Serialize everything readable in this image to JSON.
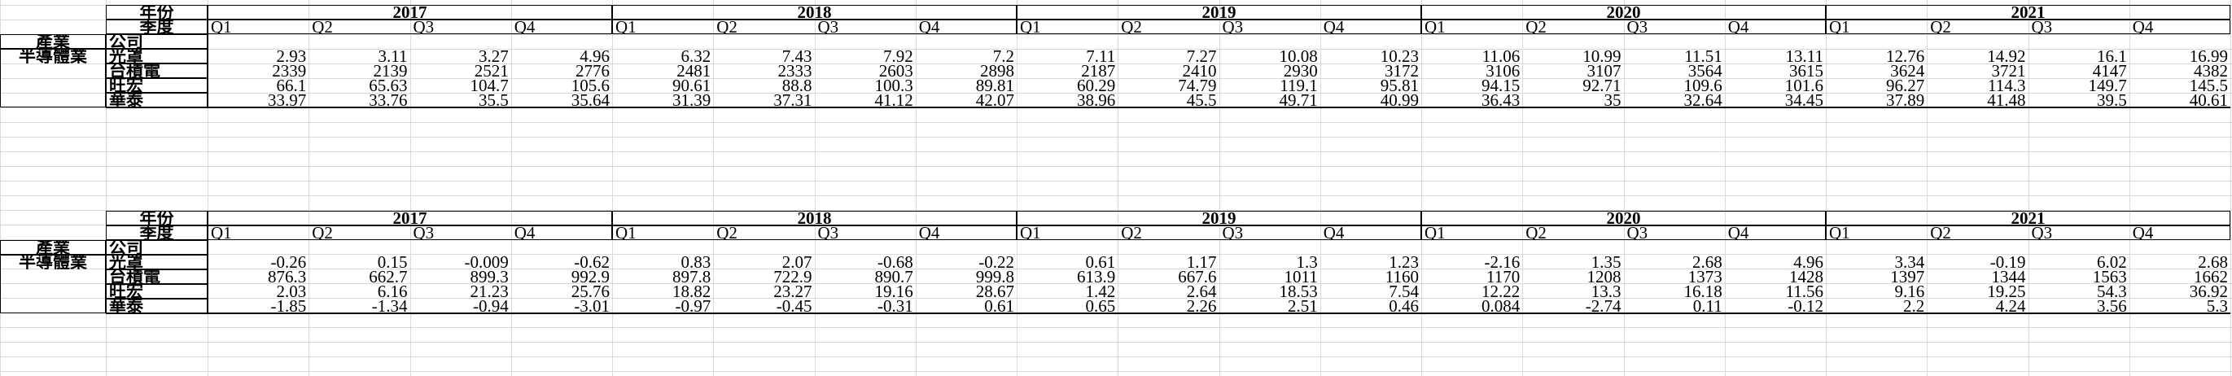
{
  "tables": [
    {
      "year_label": "年份",
      "quarter_label": "季度",
      "industry_label": "產業",
      "company_label": "公司",
      "industry_name": "半導體業",
      "years": [
        "2017",
        "2018",
        "2019",
        "2020",
        "2021"
      ],
      "quarters": [
        "Q1",
        "Q2",
        "Q3",
        "Q4"
      ],
      "companies": [
        {
          "name": "光罩",
          "values": [
            "2.93",
            "3.11",
            "3.27",
            "4.96",
            "6.32",
            "7.43",
            "7.92",
            "7.2",
            "7.11",
            "7.27",
            "10.08",
            "10.23",
            "11.06",
            "10.99",
            "11.51",
            "13.11",
            "12.76",
            "14.92",
            "16.1",
            "16.99"
          ]
        },
        {
          "name": "台積電",
          "values": [
            "2339",
            "2139",
            "2521",
            "2776",
            "2481",
            "2333",
            "2603",
            "2898",
            "2187",
            "2410",
            "2930",
            "3172",
            "3106",
            "3107",
            "3564",
            "3615",
            "3624",
            "3721",
            "4147",
            "4382"
          ]
        },
        {
          "name": "旺宏",
          "values": [
            "66.1",
            "65.63",
            "104.7",
            "105.6",
            "90.61",
            "88.8",
            "100.3",
            "89.81",
            "60.29",
            "74.79",
            "119.1",
            "95.81",
            "94.15",
            "92.71",
            "109.6",
            "101.6",
            "96.27",
            "114.3",
            "149.7",
            "145.5"
          ]
        },
        {
          "name": "華泰",
          "values": [
            "33.97",
            "33.76",
            "35.5",
            "35.64",
            "31.39",
            "37.31",
            "41.12",
            "42.07",
            "38.96",
            "45.5",
            "49.71",
            "40.99",
            "36.43",
            "35",
            "32.64",
            "34.45",
            "37.89",
            "41.48",
            "39.5",
            "40.61"
          ]
        }
      ]
    },
    {
      "year_label": "年份",
      "quarter_label": "季度",
      "industry_label": "產業",
      "company_label": "公司",
      "industry_name": "半導體業",
      "years": [
        "2017",
        "2018",
        "2019",
        "2020",
        "2021"
      ],
      "quarters": [
        "Q1",
        "Q2",
        "Q3",
        "Q4"
      ],
      "companies": [
        {
          "name": "光罩",
          "values": [
            "-0.26",
            "0.15",
            "-0.009",
            "-0.62",
            "0.83",
            "2.07",
            "-0.68",
            "-0.22",
            "0.61",
            "1.17",
            "1.3",
            "1.23",
            "-2.16",
            "1.35",
            "2.68",
            "4.96",
            "3.34",
            "-0.19",
            "6.02",
            "2.68"
          ]
        },
        {
          "name": "台積電",
          "values": [
            "876.3",
            "662.7",
            "899.3",
            "992.9",
            "897.8",
            "722.9",
            "890.7",
            "999.8",
            "613.9",
            "667.6",
            "1011",
            "1160",
            "1170",
            "1208",
            "1373",
            "1428",
            "1397",
            "1344",
            "1563",
            "1662"
          ]
        },
        {
          "name": "旺宏",
          "values": [
            "2.03",
            "6.16",
            "21.23",
            "25.76",
            "18.82",
            "23.27",
            "19.16",
            "28.67",
            "1.42",
            "2.64",
            "18.53",
            "7.54",
            "12.22",
            "13.3",
            "16.18",
            "11.56",
            "9.16",
            "19.25",
            "54.3",
            "36.92"
          ]
        },
        {
          "name": "華泰",
          "values": [
            "-1.85",
            "-1.34",
            "-0.94",
            "-3.01",
            "-0.97",
            "-0.45",
            "-0.31",
            "0.61",
            "0.65",
            "2.26",
            "2.51",
            "0.46",
            "0.084",
            "-2.74",
            "0.11",
            "-0.12",
            "2.2",
            "4.24",
            "3.56",
            "5.3"
          ]
        }
      ]
    }
  ]
}
